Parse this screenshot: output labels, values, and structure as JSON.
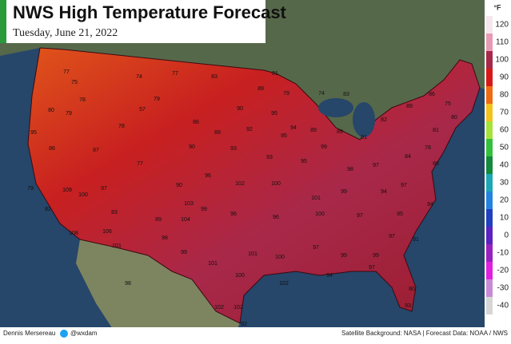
{
  "header": {
    "title": "NWS High Temperature Forecast",
    "subtitle": "Tuesday, June 21, 2022"
  },
  "legend": {
    "unit": "°F",
    "stops": [
      {
        "label": "120",
        "color": "#f6e6ee"
      },
      {
        "label": "110",
        "color": "#e79ab4"
      },
      {
        "label": "100",
        "color": "#a8284a"
      },
      {
        "label": "90",
        "color": "#d81818"
      },
      {
        "label": "80",
        "color": "#f06a12"
      },
      {
        "label": "70",
        "color": "#f4c21c"
      },
      {
        "label": "60",
        "color": "#a6e23a"
      },
      {
        "label": "50",
        "color": "#34c03c"
      },
      {
        "label": "40",
        "color": "#138a3c"
      },
      {
        "label": "30",
        "color": "#1aa8b4"
      },
      {
        "label": "20",
        "color": "#2282e0"
      },
      {
        "label": "10",
        "color": "#2040c0"
      },
      {
        "label": "0",
        "color": "#5a22c0"
      },
      {
        "label": "-10",
        "color": "#9a20c0"
      },
      {
        "label": "-20",
        "color": "#e020e0"
      },
      {
        "label": "-30",
        "color": "#c88ad6"
      },
      {
        "label": "-40",
        "color": "#d6d6d6"
      }
    ]
  },
  "map": {
    "readings": [
      77,
      74,
      77,
      83,
      81,
      89,
      79,
      74,
      83,
      75,
      80,
      95,
      86,
      79,
      78,
      78,
      57,
      79,
      86,
      90,
      89,
      90,
      92,
      95,
      94,
      89,
      89,
      91,
      82,
      89,
      86,
      75,
      80,
      81,
      78,
      93,
      84,
      88,
      93,
      95,
      99,
      95,
      98,
      97,
      96,
      102,
      100,
      101,
      99,
      94,
      97,
      94,
      99,
      96,
      96,
      100,
      97,
      95,
      103,
      90,
      77,
      87,
      97,
      109,
      100,
      79,
      82,
      108,
      101,
      106,
      83,
      89,
      104,
      98,
      99,
      101,
      101,
      100,
      97,
      99,
      99,
      97,
      91,
      97,
      94,
      100,
      102,
      102,
      93,
      80,
      102,
      92,
      98
    ]
  },
  "footer": {
    "credit": "Dennis Mersereau",
    "handle": "@wxdam",
    "sources": "Satellite Background: NASA | Forecast Data: NOAA / NWS"
  }
}
